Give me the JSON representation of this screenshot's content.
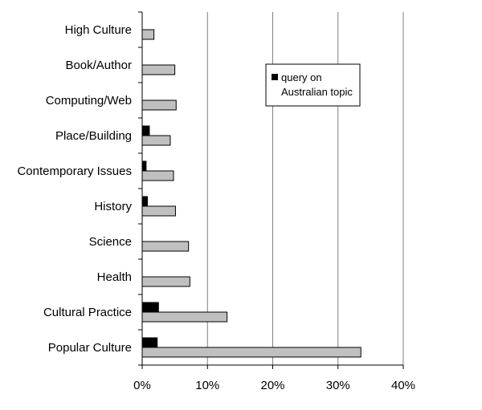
{
  "chart_data": {
    "type": "bar",
    "orientation": "horizontal",
    "categories": [
      "High Culture",
      "Book/Author",
      "Computing/Web",
      "Place/Building",
      "Contemporary Issues",
      "History",
      "Science",
      "Health",
      "Cultural Practice",
      "Popular Culture"
    ],
    "series": [
      {
        "name": "query on Australian topic",
        "color": "#000000",
        "values": [
          0,
          0,
          0,
          1.1,
          0.6,
          0.8,
          0,
          0,
          2.5,
          2.3
        ]
      },
      {
        "color": "#c0c0c0",
        "values": [
          1.8,
          5.0,
          5.2,
          4.3,
          4.8,
          5.1,
          7.1,
          7.3,
          13.0,
          33.5
        ]
      }
    ],
    "xlim": [
      0,
      40
    ],
    "ticks": [
      "0%",
      "10%",
      "20%",
      "30%",
      "40%"
    ],
    "tick_values": [
      0,
      10,
      20,
      30,
      40
    ],
    "grid": "vertical",
    "legend": {
      "placement": "top-right",
      "lines": [
        "query on",
        "Australian topic"
      ]
    }
  }
}
